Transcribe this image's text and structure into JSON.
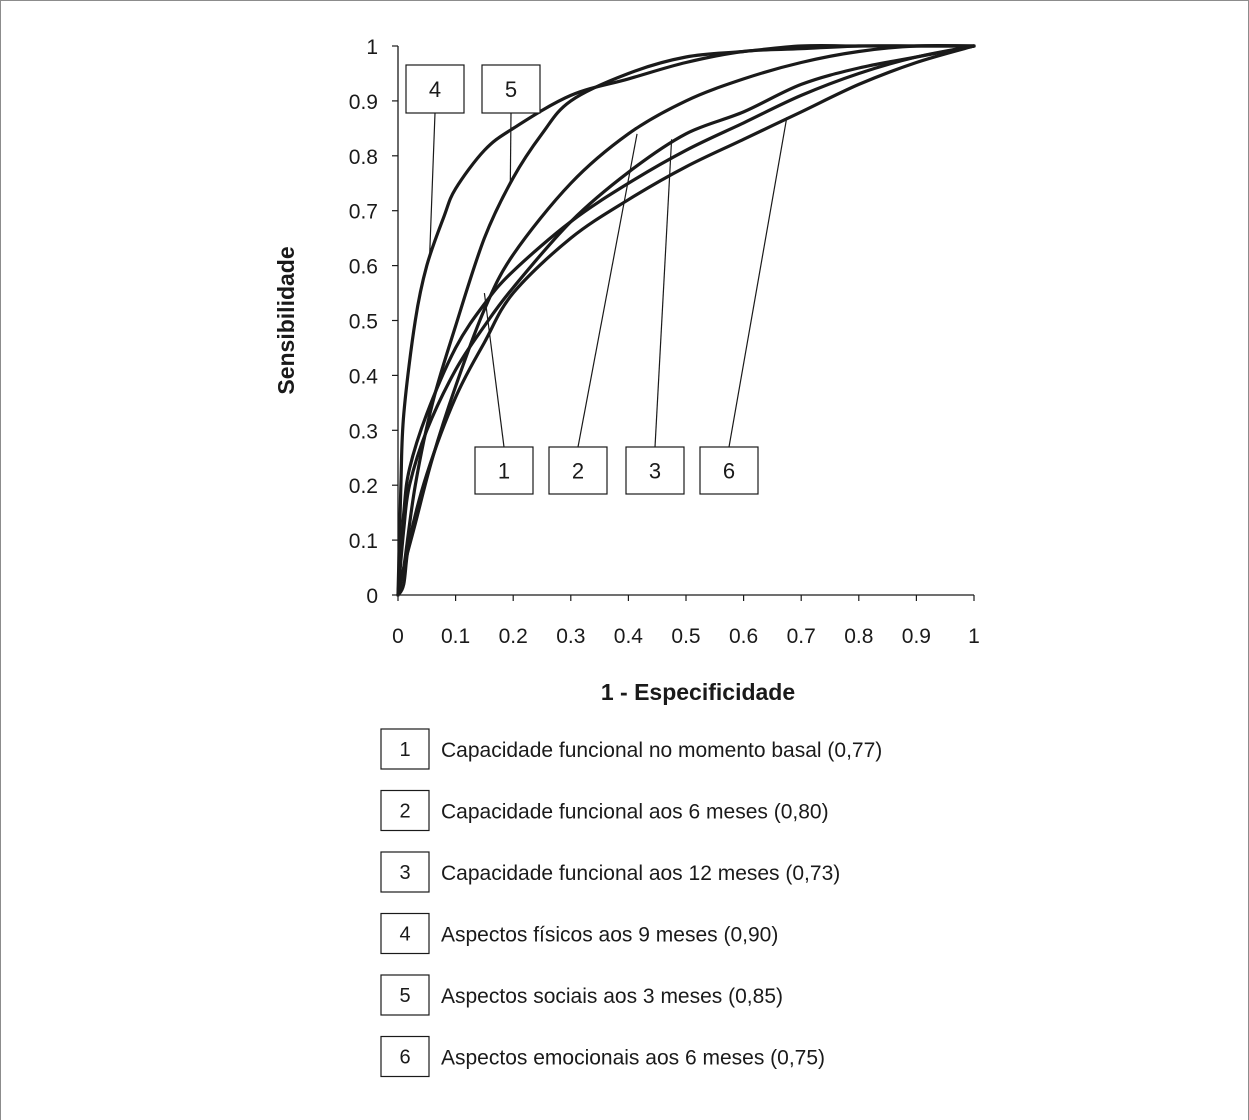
{
  "chart_data": {
    "type": "line",
    "xlabel": "1 - Especificidade",
    "ylabel": "Sensibilidade",
    "xlim": [
      0,
      1
    ],
    "ylim": [
      0,
      1
    ],
    "x_ticks": [
      "0",
      "0.1",
      "0.2",
      "0.3",
      "0.4",
      "0.5",
      "0.6",
      "0.7",
      "0.8",
      "0.9",
      "1"
    ],
    "y_ticks": [
      "0",
      "0.1",
      "0.2",
      "0.3",
      "0.4",
      "0.5",
      "0.6",
      "0.7",
      "0.8",
      "0.9",
      "1"
    ],
    "grid": false,
    "series": [
      {
        "name": "1",
        "description": "Capacidade funcional no momento basal (0,77)",
        "x": [
          0,
          0.01,
          0.02,
          0.05,
          0.1,
          0.15,
          0.2,
          0.3,
          0.4,
          0.5,
          0.6,
          0.7,
          0.8,
          0.9,
          1
        ],
        "y": [
          0,
          0.15,
          0.23,
          0.33,
          0.45,
          0.53,
          0.59,
          0.68,
          0.75,
          0.81,
          0.86,
          0.91,
          0.95,
          0.98,
          1
        ]
      },
      {
        "name": "2",
        "description": "Capacidade funcional aos 6 meses (0,80)",
        "x": [
          0,
          0.01,
          0.03,
          0.06,
          0.1,
          0.15,
          0.2,
          0.3,
          0.4,
          0.5,
          0.6,
          0.7,
          0.8,
          0.9,
          1
        ],
        "y": [
          0,
          0.05,
          0.13,
          0.25,
          0.38,
          0.52,
          0.62,
          0.75,
          0.84,
          0.9,
          0.94,
          0.97,
          0.99,
          1,
          1
        ]
      },
      {
        "name": "3",
        "description": "Capacidade funcional aos 12 meses (0,73)",
        "x": [
          0,
          0.01,
          0.02,
          0.05,
          0.1,
          0.15,
          0.2,
          0.3,
          0.4,
          0.5,
          0.6,
          0.7,
          0.8,
          0.9,
          1
        ],
        "y": [
          0,
          0.12,
          0.2,
          0.3,
          0.41,
          0.49,
          0.56,
          0.68,
          0.77,
          0.84,
          0.88,
          0.93,
          0.96,
          0.98,
          1
        ]
      },
      {
        "name": "4",
        "description": "Aspectos físicos aos 9 meses (0,90)",
        "x": [
          0,
          0.005,
          0.01,
          0.03,
          0.05,
          0.08,
          0.1,
          0.15,
          0.2,
          0.3,
          0.4,
          0.5,
          0.6,
          0.7,
          0.8,
          0.9,
          1
        ],
        "y": [
          0,
          0.2,
          0.33,
          0.5,
          0.6,
          0.69,
          0.74,
          0.81,
          0.85,
          0.91,
          0.94,
          0.97,
          0.99,
          0.995,
          1,
          1,
          1
        ]
      },
      {
        "name": "5",
        "description": "Aspectos sociais aos 3 meses (0,85)",
        "x": [
          0,
          0.01,
          0.03,
          0.06,
          0.1,
          0.15,
          0.2,
          0.25,
          0.3,
          0.4,
          0.5,
          0.6,
          0.7,
          0.8,
          0.9,
          1
        ],
        "y": [
          0,
          0.05,
          0.2,
          0.35,
          0.49,
          0.65,
          0.76,
          0.84,
          0.9,
          0.95,
          0.98,
          0.99,
          1,
          1,
          1,
          1
        ]
      },
      {
        "name": "6",
        "description": "Aspectos emocionais aos 6 meses (0,75)",
        "x": [
          0,
          0.01,
          0.02,
          0.05,
          0.1,
          0.15,
          0.2,
          0.3,
          0.4,
          0.5,
          0.6,
          0.7,
          0.8,
          0.9,
          1
        ],
        "y": [
          0,
          0.02,
          0.1,
          0.22,
          0.36,
          0.46,
          0.55,
          0.65,
          0.72,
          0.78,
          0.83,
          0.88,
          0.93,
          0.97,
          1
        ]
      }
    ],
    "callouts": [
      {
        "label": "4",
        "point": [
          0.055,
          0.62
        ]
      },
      {
        "label": "5",
        "point": [
          0.195,
          0.75
        ]
      },
      {
        "label": "1",
        "point": [
          0.15,
          0.55
        ]
      },
      {
        "label": "2",
        "point": [
          0.415,
          0.84
        ]
      },
      {
        "label": "3",
        "point": [
          0.475,
          0.83
        ]
      },
      {
        "label": "6",
        "point": [
          0.675,
          0.87
        ]
      }
    ],
    "legend": [
      {
        "num": "1",
        "text": "Capacidade funcional no momento basal (0,77)"
      },
      {
        "num": "2",
        "text": "Capacidade funcional aos 6 meses (0,80)"
      },
      {
        "num": "3",
        "text": "Capacidade funcional aos 12 meses (0,73)"
      },
      {
        "num": "4",
        "text": "Aspectos físicos aos 9 meses (0,90)"
      },
      {
        "num": "5",
        "text": "Aspectos sociais aos 3 meses (0,85)"
      },
      {
        "num": "6",
        "text": "Aspectos emocionais aos 6 meses (0,75)"
      }
    ],
    "legend_placement": "bottom"
  }
}
